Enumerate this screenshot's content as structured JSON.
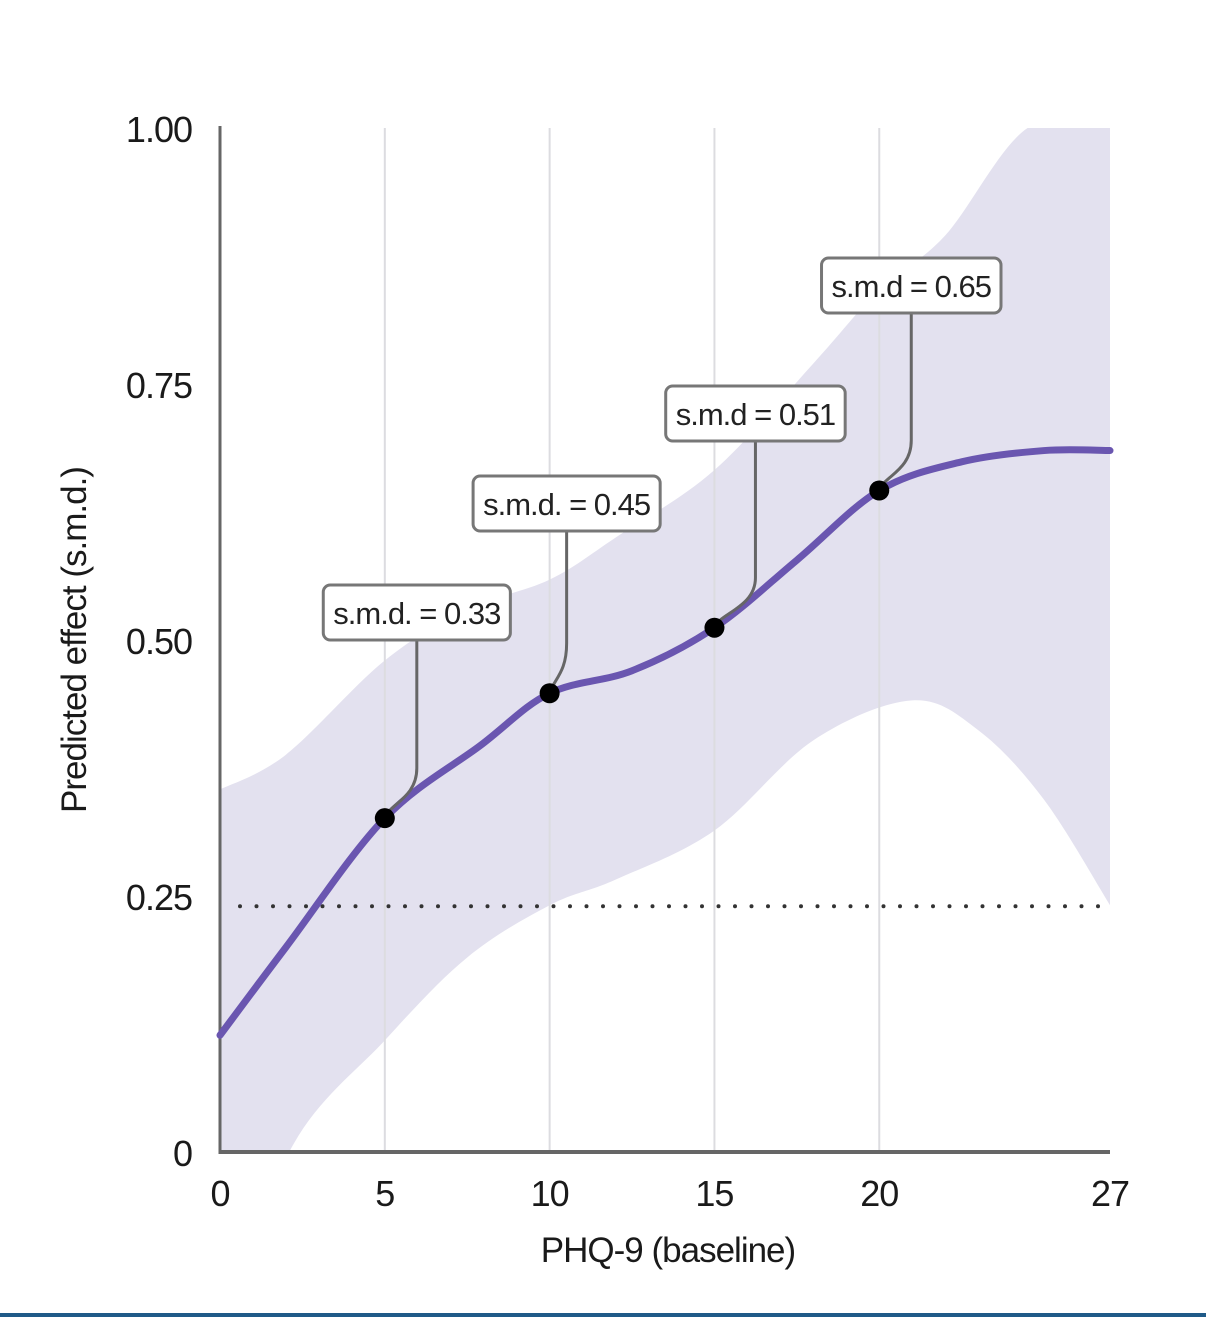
{
  "chart_data": {
    "type": "line",
    "title": "",
    "xlabel": "PHQ-9 (baseline)",
    "ylabel": "Predicted effect (s.m.d.)",
    "xlim": [
      0,
      27
    ],
    "ylim": [
      0,
      1
    ],
    "x_ticks": [
      0,
      5,
      10,
      15,
      20,
      27
    ],
    "x_tick_labels": [
      "0",
      "5",
      "10",
      "15",
      "20",
      "27"
    ],
    "y_ticks": [
      0,
      0.25,
      0.5,
      0.75,
      1.0
    ],
    "y_tick_labels": [
      "0",
      "0.25",
      "0.50",
      "0.75",
      "1.00"
    ],
    "grid": "vertical",
    "reference_line": {
      "y": 0.24,
      "style": "dotted"
    },
    "series": [
      {
        "name": "Predicted effect",
        "color": "#6a56b0",
        "x": [
          0,
          2,
          5,
          7.9,
          10,
          12.5,
          15,
          17.5,
          20,
          22.5,
          25,
          27
        ],
        "y": [
          0.114,
          0.2,
          0.326,
          0.397,
          0.448,
          0.47,
          0.512,
          0.578,
          0.646,
          0.674,
          0.685,
          0.685
        ]
      }
    ],
    "confidence_band": {
      "color": "#e3e1ef",
      "x": [
        0,
        2,
        5,
        7.5,
        10,
        12,
        15,
        18,
        20,
        22,
        24.5,
        27
      ],
      "upper": [
        0.354,
        0.388,
        0.48,
        0.53,
        0.559,
        0.6,
        0.666,
        0.77,
        0.842,
        0.895,
        1.0,
        1.0
      ],
      "lower_x": [
        0,
        2.1,
        5,
        7.5,
        10,
        12,
        15,
        18,
        21,
        23,
        25,
        27
      ],
      "lower": [
        -0.2,
        0,
        0.109,
        0.19,
        0.241,
        0.266,
        0.314,
        0.402,
        0.441,
        0.412,
        0.344,
        0.241
      ]
    },
    "annotations": [
      {
        "x": 5,
        "y": 0.326,
        "text": "s.m.d. = 0.33"
      },
      {
        "x": 10,
        "y": 0.448,
        "text": "s.m.d. = 0.45"
      },
      {
        "x": 15,
        "y": 0.512,
        "text": "s.m.d = 0.51"
      },
      {
        "x": 20,
        "y": 0.646,
        "text": "s.m.d = 0.65"
      }
    ]
  }
}
